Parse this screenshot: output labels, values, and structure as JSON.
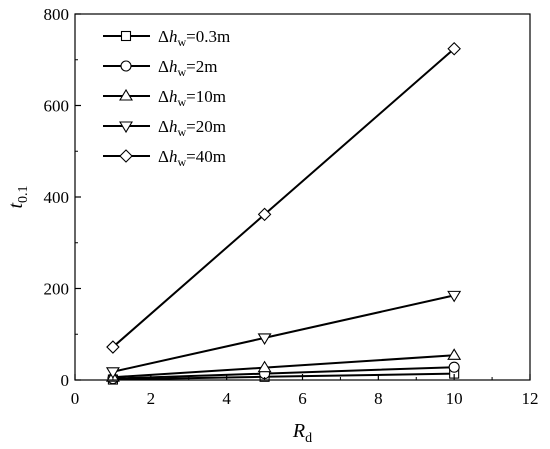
{
  "chart_data": {
    "type": "line",
    "xlabel_main": "R",
    "xlabel_sub": "d",
    "ylabel_main": "t",
    "ylabel_sub": "0.1",
    "xlim": [
      0,
      12
    ],
    "ylim": [
      0,
      800
    ],
    "xticks": [
      "0",
      "2",
      "4",
      "6",
      "8",
      "10",
      "12"
    ],
    "yticks": [
      "0",
      "200",
      "400",
      "600",
      "800"
    ],
    "grid": false,
    "legend_position": "top-left",
    "x": [
      1,
      5,
      10
    ],
    "series": [
      {
        "name": "Δhw=0.3m",
        "legend_pre": "Δ",
        "legend_h": "h",
        "legend_sub": "w",
        "legend_val": "=0.3m",
        "marker": "square",
        "values": [
          1,
          7,
          14
        ]
      },
      {
        "name": "Δhw=2m",
        "legend_pre": "Δ",
        "legend_h": "h",
        "legend_sub": "w",
        "legend_val": "=2m",
        "marker": "circle",
        "values": [
          3,
          14,
          28
        ]
      },
      {
        "name": "Δhw=10m",
        "legend_pre": "Δ",
        "legend_h": "h",
        "legend_sub": "w",
        "legend_val": "=10m",
        "marker": "triangle-up",
        "values": [
          6,
          27,
          54
        ]
      },
      {
        "name": "Δhw=20m",
        "legend_pre": "Δ",
        "legend_h": "h",
        "legend_sub": "w",
        "legend_val": "=20m",
        "marker": "triangle-down",
        "values": [
          18,
          92,
          185
        ]
      },
      {
        "name": "Δhw=40m",
        "legend_pre": "Δ",
        "legend_h": "h",
        "legend_sub": "w",
        "legend_val": "=40m",
        "marker": "diamond",
        "values": [
          72,
          362,
          724
        ]
      }
    ]
  }
}
